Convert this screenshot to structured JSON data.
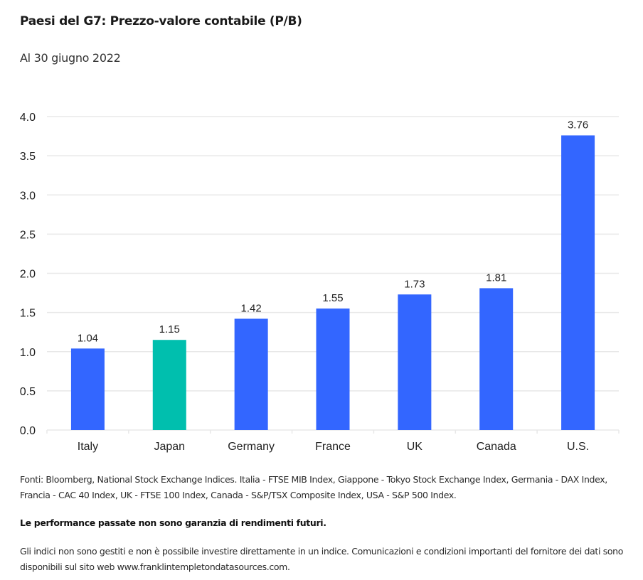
{
  "header": {
    "title": "Paesi del G7: Prezzo-valore contabile (P/B)",
    "subtitle": "Al 30 giugno 2022"
  },
  "chart_data": {
    "type": "bar",
    "title": "Paesi del G7: Prezzo-valore contabile (P/B)",
    "subtitle": "Al 30 giugno 2022",
    "xlabel": "",
    "ylabel": "",
    "categories": [
      "Italy",
      "Japan",
      "Germany",
      "France",
      "UK",
      "Canada",
      "U.S."
    ],
    "values": [
      1.04,
      1.15,
      1.42,
      1.55,
      1.73,
      1.81,
      3.76
    ],
    "value_labels": [
      "1.04",
      "1.15",
      "1.42",
      "1.55",
      "1.73",
      "1.81",
      "3.76"
    ],
    "highlight_index": 1,
    "colors": {
      "default": "#3366ff",
      "highlight": "#00bfae",
      "grid": "#e8e8e8"
    },
    "ylim": [
      0,
      4.0
    ],
    "yticks": [
      0.0,
      0.5,
      1.0,
      1.5,
      2.0,
      2.5,
      3.0,
      3.5,
      4.0
    ],
    "ytick_labels": [
      "0.0",
      "0.5",
      "1.0",
      "1.5",
      "2.0",
      "2.5",
      "3.0",
      "3.5",
      "4.0"
    ],
    "grid": true,
    "legend": "none"
  },
  "notes": {
    "sources": "Fonti: Bloomberg, National Stock Exchange Indices. Italia - FTSE MIB Index, Giappone - Tokyo Stock Exchange Index, Germania - DAX Index, Francia - CAC 40 Index, UK - FTSE 100 Index, Canada - S&P/TSX Composite Index, USA - S&P 500 Index.",
    "performance": "Le performance passate non sono garanzia di rendimenti futuri.",
    "disclaimer": "Gli indici non sono gestiti e non è possibile investire direttamente in un indice. Comunicazioni e condizioni importanti del fornitore dei dati sono disponibili sul sito web www.franklintempletondatasources.com."
  }
}
